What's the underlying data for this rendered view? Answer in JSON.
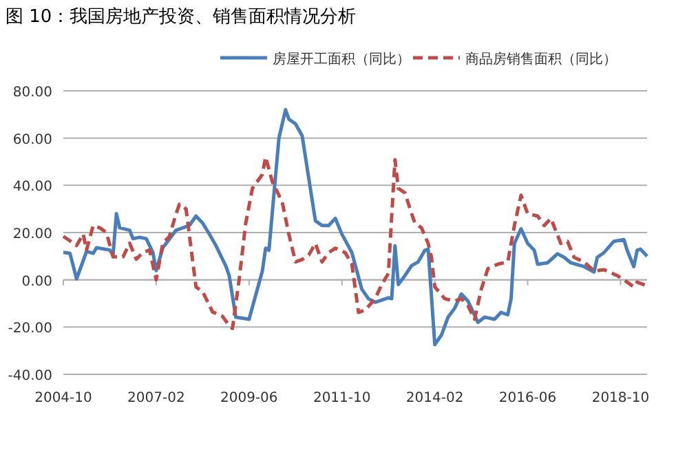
{
  "chart_data": {
    "type": "line",
    "title": "图 10：我国房地产投资、销售面积情况分析",
    "xlim": [
      "2004-10",
      "2019-06"
    ],
    "xticks": [
      "2004-10",
      "2007-02",
      "2009-06",
      "2011-10",
      "2014-02",
      "2016-06",
      "2018-10"
    ],
    "ylim": [
      -40,
      80
    ],
    "yticks": [
      {
        "value": -40,
        "label": "-40.00"
      },
      {
        "value": -20,
        "label": "-20.00"
      },
      {
        "value": 0,
        "label": "0.00"
      },
      {
        "value": 20,
        "label": "20.00"
      },
      {
        "value": 40,
        "label": "40.00"
      },
      {
        "value": 60,
        "label": "60.00"
      },
      {
        "value": 80,
        "label": "80.00"
      }
    ],
    "grid": "y",
    "legend": "top",
    "marker": "none",
    "series": [
      {
        "name": "房屋开工面积（同比）",
        "color": "#4a7ebb",
        "line_style": "solid",
        "x": [
          "2004-10",
          "2004-12",
          "2005-02",
          "2005-05",
          "2005-07",
          "2005-08",
          "2005-12",
          "2006-01",
          "2006-02",
          "2006-03",
          "2006-06",
          "2006-07",
          "2006-09",
          "2006-11",
          "2007-01",
          "2007-02",
          "2007-04",
          "2007-08",
          "2007-12",
          "2008-02",
          "2008-04",
          "2008-06",
          "2008-08",
          "2008-11",
          "2008-12",
          "2009-02",
          "2009-06",
          "2009-10",
          "2009-11",
          "2009-12",
          "2010-03",
          "2010-05",
          "2010-06",
          "2010-08",
          "2010-10",
          "2011-02",
          "2011-04",
          "2011-06",
          "2011-08",
          "2011-10",
          "2012-01",
          "2012-04",
          "2012-06",
          "2012-08",
          "2012-12",
          "2013-01",
          "2013-02",
          "2013-03",
          "2013-05",
          "2013-07",
          "2013-09",
          "2013-11",
          "2013-12",
          "2014-02",
          "2014-04",
          "2014-06",
          "2014-08",
          "2014-10",
          "2014-12",
          "2015-03",
          "2015-05",
          "2015-08",
          "2015-10",
          "2015-12",
          "2016-01",
          "2016-02",
          "2016-04",
          "2016-06",
          "2016-08",
          "2016-09",
          "2016-12",
          "2017-03",
          "2017-05",
          "2017-07",
          "2017-11",
          "2018-02",
          "2018-03",
          "2018-05",
          "2018-08",
          "2018-11",
          "2018-12",
          "2019-02",
          "2019-03",
          "2019-04",
          "2019-06"
        ],
        "values": [
          11.6,
          11.2,
          0.4,
          12,
          11.2,
          13.6,
          12.6,
          10.7,
          28,
          22,
          21,
          17.4,
          18,
          17.4,
          11.6,
          3.9,
          13.6,
          21,
          23,
          27,
          24,
          19.4,
          14.5,
          5.8,
          1.8,
          -15.8,
          -16.7,
          3.7,
          13.4,
          12.5,
          60,
          72,
          68,
          66,
          61,
          25,
          23,
          23,
          26,
          19.3,
          11.5,
          -4,
          -8,
          -9.5,
          -7.6,
          -8,
          14.4,
          -2,
          1.8,
          6,
          7.6,
          12.5,
          13,
          -27.4,
          -23.4,
          -15.8,
          -12,
          -6,
          -9,
          -18,
          -15.8,
          -16.7,
          -13.8,
          -14.8,
          -8,
          15.4,
          21.6,
          15.4,
          12.5,
          6.6,
          7.2,
          11,
          9.5,
          7.2,
          5.6,
          3.3,
          9.5,
          11.5,
          16.3,
          17,
          12.5,
          5.6,
          12.5,
          13,
          10
        ]
      },
      {
        "name": "商品房销售面积（同比）",
        "color": "#be4b48",
        "line_style": "dashed",
        "x": [
          "2004-10",
          "2004-12",
          "2005-02",
          "2005-04",
          "2005-05",
          "2005-07",
          "2005-09",
          "2005-11",
          "2006-01",
          "2006-04",
          "2006-06",
          "2006-08",
          "2006-10",
          "2006-12",
          "2007-02",
          "2007-04",
          "2007-06",
          "2007-08",
          "2007-09",
          "2007-11",
          "2008-02",
          "2008-04",
          "2008-07",
          "2008-10",
          "2008-12",
          "2009-01",
          "2009-03",
          "2009-05",
          "2009-07",
          "2009-10",
          "2009-11",
          "2010-01",
          "2010-04",
          "2010-06",
          "2010-08",
          "2010-10",
          "2010-12",
          "2011-02",
          "2011-04",
          "2011-06",
          "2011-08",
          "2011-11",
          "2012-01",
          "2012-03",
          "2012-05",
          "2012-08",
          "2012-10",
          "2012-12",
          "2013-02",
          "2013-03",
          "2013-05",
          "2013-07",
          "2013-08",
          "2013-10",
          "2013-12",
          "2014-01",
          "2014-02",
          "2014-05",
          "2014-08",
          "2014-10",
          "2014-12",
          "2015-02",
          "2015-04",
          "2015-06",
          "2015-09",
          "2015-12",
          "2016-02",
          "2016-04",
          "2016-06",
          "2016-09",
          "2016-11",
          "2017-01",
          "2017-04",
          "2017-06",
          "2017-08",
          "2017-11",
          "2018-02",
          "2018-05",
          "2018-09",
          "2018-12",
          "2019-02",
          "2019-03",
          "2019-06"
        ],
        "values": [
          18.4,
          16.5,
          14.5,
          19.4,
          12.6,
          23,
          22,
          20,
          9.7,
          9.7,
          15.5,
          8.7,
          11.6,
          12.6,
          0,
          15.5,
          18.4,
          28,
          32,
          30,
          -3,
          -5,
          -13.6,
          -15.5,
          -19.4,
          -20.6,
          0,
          24,
          38.7,
          44.6,
          52,
          41.6,
          32.9,
          19.3,
          7.6,
          8.6,
          10.5,
          15.4,
          7.6,
          11.5,
          13.4,
          11.5,
          6.6,
          -13.8,
          -12.8,
          -8,
          -2,
          2.7,
          50.8,
          38.7,
          36.8,
          28,
          24,
          22,
          15.4,
          9.5,
          -3,
          -8,
          -9,
          -8,
          -10.9,
          -16.7,
          -4,
          4.7,
          6.6,
          7.6,
          23,
          35.8,
          28,
          27,
          23,
          26,
          15.4,
          16.3,
          9.5,
          7.6,
          3.7,
          4.3,
          1.8,
          -1,
          -3,
          -1,
          -2.5
        ]
      }
    ]
  }
}
